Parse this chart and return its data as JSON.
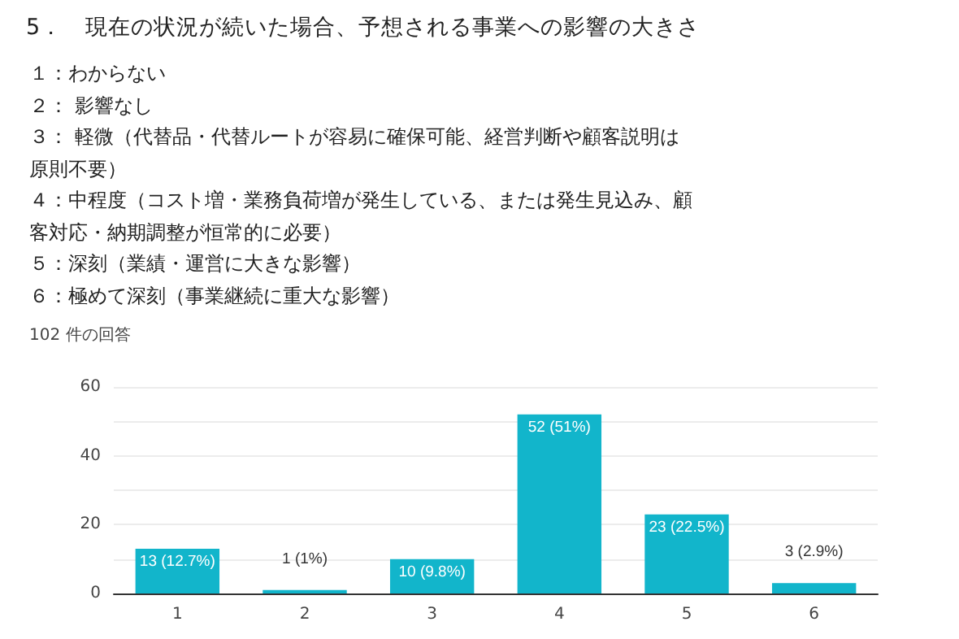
{
  "chart_data": {
    "type": "bar",
    "title": "5．　現在の状況が続いた場合、予想される事業への影響の大きさ",
    "annotations": [
      "１：わからない",
      "２： 影響なし",
      "３： 軽微（代替品・代替ルートが容易に確保可能、経営判断や顧客説明は原則不要）",
      "４：中程度（コスト増・業務負荷増が発生している、または発生見込み、顧客対応・納期調整が恒常的に必要）",
      "５：深刻（業績・運営に大きな影響）",
      "６：極めて深刻（事業継続に重大な影響）",
      "102 件の回答"
    ],
    "categories": [
      "1",
      "2",
      "3",
      "4",
      "5",
      "6"
    ],
    "values": [
      13,
      1,
      10,
      52,
      23,
      3
    ],
    "value_labels": [
      "13 (12.7%)",
      "1 (1%)",
      "10 (9.8%)",
      "52 (51%)",
      "23 (22.5%)",
      "3 (2.9%)"
    ],
    "color": "#12b5cb",
    "ylim": [
      0,
      60
    ],
    "yticks": [
      0,
      {
        "value": 10,
        "label": null
      },
      20,
      {
        "value": 30,
        "label": null
      },
      40,
      {
        "value": 50,
        "label": null
      },
      60
    ],
    "grid": "y"
  }
}
